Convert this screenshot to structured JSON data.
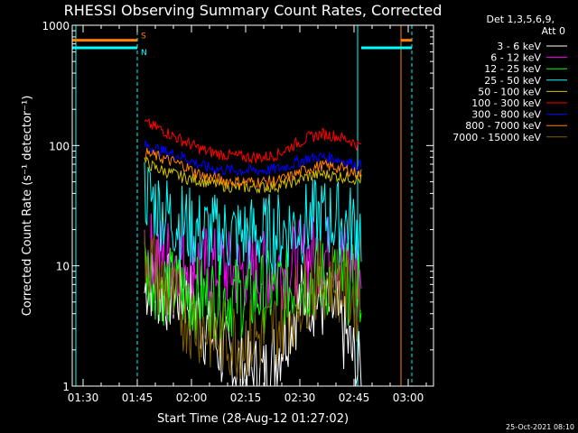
{
  "chart_data": {
    "type": "line",
    "title": "RHESSI Observing Summary Count Rates, Corrected",
    "xlabel": "Start Time (28-Aug-12 01:27:02)",
    "ylabel": "Corrected Count Rate (s⁻¹ detector⁻¹)",
    "ylog": true,
    "ylim": [
      1,
      1000
    ],
    "xlim": [
      "01:27",
      "03:07"
    ],
    "x_ticks": [
      "01:30",
      "01:45",
      "02:00",
      "02:15",
      "02:30",
      "02:45",
      "03:00"
    ],
    "y_ticks": [
      "1",
      "10",
      "100",
      "1000"
    ],
    "legend_header": [
      "Det 1,3,5,6,9,",
      "Att 0"
    ],
    "legend_placement": "right",
    "x": [
      "01:47",
      "01:48",
      "01:50",
      "01:52",
      "01:55",
      "01:58",
      "02:01",
      "02:04",
      "02:08",
      "02:12",
      "02:16",
      "02:20",
      "02:24",
      "02:28",
      "02:32",
      "02:36",
      "02:40",
      "02:44",
      "02:46",
      "02:47"
    ],
    "series": [
      {
        "name": "3 - 6 keV",
        "color": "#ffffff",
        "values": [
          6,
          8,
          7,
          6,
          6,
          6,
          4.5,
          3,
          2,
          1.5,
          1.3,
          1.2,
          2,
          4,
          6,
          5,
          4,
          2,
          1.3,
          1.3
        ]
      },
      {
        "name": "6 - 12 keV",
        "color": "#ff00ff",
        "values": [
          15,
          13,
          13,
          12,
          12,
          12,
          11,
          10,
          9.5,
          9,
          9,
          9,
          9.5,
          10,
          12,
          13,
          12,
          11,
          10,
          10
        ]
      },
      {
        "name": "12 - 25 keV",
        "color": "#00ff00",
        "values": [
          10,
          9,
          8,
          7,
          6.5,
          6,
          5.5,
          5.5,
          5.5,
          5.5,
          5.5,
          6,
          6.5,
          7,
          7.5,
          8,
          7.5,
          7,
          6.5,
          6.5
        ]
      },
      {
        "name": "25 - 50 keV",
        "color": "#00ffff",
        "values": [
          45,
          38,
          33,
          28,
          25,
          22,
          20,
          19,
          18,
          18,
          18,
          18,
          19,
          21,
          23,
          25,
          24,
          22,
          20,
          20
        ]
      },
      {
        "name": "50 - 100 keV",
        "color": "#d0c000",
        "values": [
          75,
          70,
          65,
          62,
          58,
          54,
          52,
          50,
          47,
          45,
          45,
          45,
          46,
          50,
          55,
          58,
          56,
          54,
          52,
          52
        ]
      },
      {
        "name": "100 - 300 keV",
        "color": "#ff0000",
        "values": [
          155,
          150,
          142,
          135,
          120,
          108,
          98,
          90,
          85,
          82,
          80,
          80,
          85,
          100,
          115,
          125,
          120,
          110,
          100,
          100
        ]
      },
      {
        "name": "300 - 800 keV",
        "color": "#0000ff",
        "values": [
          100,
          98,
          95,
          90,
          85,
          80,
          72,
          66,
          63,
          62,
          62,
          62,
          64,
          70,
          78,
          80,
          78,
          72,
          68,
          68
        ]
      },
      {
        "name": "800 - 7000 keV",
        "color": "#ff8000",
        "values": [
          88,
          85,
          82,
          78,
          73,
          68,
          60,
          55,
          52,
          50,
          50,
          50,
          51,
          56,
          64,
          68,
          66,
          62,
          58,
          58
        ]
      },
      {
        "name": "7000 - 15000 keV",
        "color": "#806000",
        "values": [
          15,
          12,
          9,
          7,
          5,
          4,
          3.5,
          3,
          2.5,
          2.5,
          2.5,
          2.6,
          3.2,
          4.5,
          6.5,
          8,
          7.5,
          6,
          5,
          5
        ]
      }
    ],
    "segment_markers": [
      {
        "label": "S",
        "color": "#ff8000",
        "y": 750,
        "segments": [
          [
            "01:27",
            "01:45"
          ],
          [
            "02:58",
            "03:01"
          ]
        ]
      },
      {
        "label": "N",
        "color": "#00ffff",
        "y": 650,
        "segments": [
          [
            "01:27",
            "01:45"
          ],
          [
            "02:47",
            "03:01"
          ]
        ]
      }
    ],
    "vlines": [
      {
        "x": "01:45",
        "color": "#ff8000",
        "dashed": true
      },
      {
        "x": "01:45",
        "color": "#00ffff",
        "dashed": true
      },
      {
        "x": "02:46",
        "color": "#00ffff",
        "dashed": false
      },
      {
        "x": "02:58",
        "color": "#ff8000",
        "dashed": false
      },
      {
        "x": "03:01",
        "color": "#00ffff",
        "dashed": true
      },
      {
        "x": "01:28",
        "color": "#00ffff",
        "dashed": false
      }
    ],
    "footer_timestamp": "25-Oct-2021 08:10"
  }
}
